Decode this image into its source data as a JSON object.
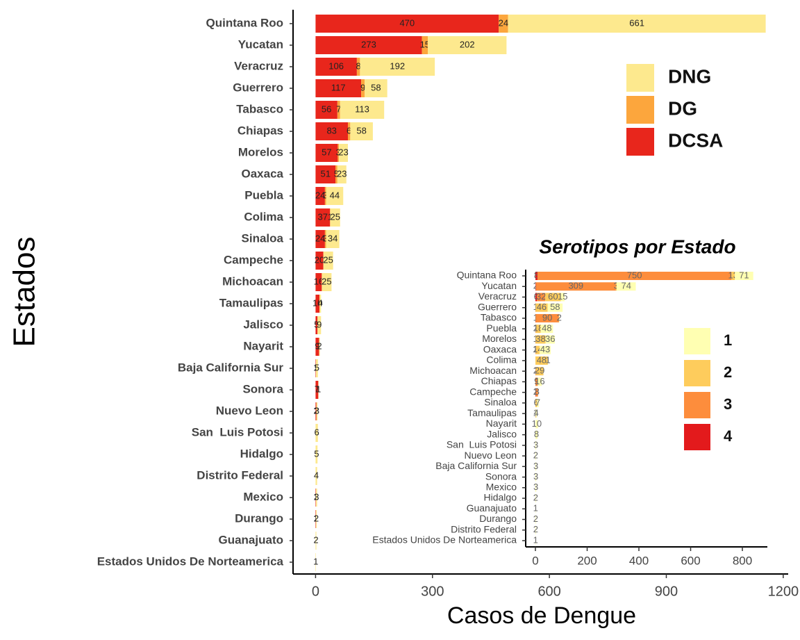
{
  "chart_data": [
    {
      "type": "bar",
      "orientation": "horizontal",
      "stacked": true,
      "x_label": "Casos de Dengue",
      "y_label": "Estados",
      "categories": [
        "Quintana Roo",
        "Yucatan",
        "Veracruz",
        "Guerrero",
        "Tabasco",
        "Chiapas",
        "Morelos",
        "Oaxaca",
        "Puebla",
        "Colima",
        "Sinaloa",
        "Campeche",
        "Michoacan",
        "Tamaulipas",
        "Jalisco",
        "Nayarit",
        "Baja California Sur",
        "Sonora",
        "Nuevo Leon",
        "San  Luis Potosi",
        "Hidalgo",
        "Distrito Federal",
        "Mexico",
        "Durango",
        "Guanajuato",
        "Estados Unidos De Norteamerica"
      ],
      "series": [
        {
          "name": "DCSA",
          "color": "#e8261c",
          "values": [
            470,
            273,
            106,
            117,
            56,
            83,
            57,
            51,
            24,
            37,
            24,
            20,
            16,
            10,
            5,
            9,
            1,
            7,
            2,
            null,
            null,
            null,
            1,
            1,
            null,
            null
          ]
        },
        {
          "name": "DG",
          "color": "#fca63d",
          "values": [
            24,
            15,
            8,
            9,
            7,
            6,
            3,
            5,
            3,
            1,
            3,
            null,
            null,
            null,
            null,
            null,
            null,
            null,
            null,
            null,
            null,
            null,
            null,
            null,
            null,
            null
          ]
        },
        {
          "name": "DNG",
          "color": "#fde98e",
          "values": [
            661,
            202,
            192,
            58,
            113,
            58,
            23,
            23,
            44,
            25,
            34,
            25,
            25,
            4,
            9,
            2,
            5,
            1,
            3,
            6,
            5,
            4,
            3,
            2,
            2,
            1
          ]
        }
      ],
      "xlim": [
        -57.75,
        1212.75
      ],
      "xticks": [
        0,
        300,
        600,
        900,
        1200
      ]
    },
    {
      "type": "bar",
      "orientation": "horizontal",
      "stacked": true,
      "title": "Serotipos por Estado",
      "categories": [
        "Quintana Roo",
        "Yucatan",
        "Veracruz",
        "Guerrero",
        "Tabasco",
        "Puebla",
        "Morelos",
        "Oaxaca",
        "Colima",
        "Michoacan",
        "Chiapas",
        "Campeche",
        "Sinaloa",
        "Tamaulipas",
        "Nayarit",
        "Jalisco",
        "San  Luis Potosi",
        "Nuevo Leon",
        "Baja California Sur",
        "Sonora",
        "Mexico",
        "Hidalgo",
        "Guanajuato",
        "Durango",
        "Distrito Federal",
        "Estados Unidos De Norteamerica"
      ],
      "series": [
        {
          "name": "1",
          "color": "#ffffb2",
          "values": [
            71,
            74,
            15,
            58,
            2,
            48,
            36,
            43,
            1,
            null,
            16,
            null,
            7,
            4,
            10,
            8,
            3,
            2,
            3,
            3,
            3,
            2,
            1,
            2,
            2,
            1
          ]
        },
        {
          "name": "2",
          "color": "#fecc5c",
          "values": [
            13,
            3,
            60,
            46,
            null,
            18,
            38,
            14,
            48,
            29,
            null,
            null,
            6,
            null,
            null,
            null,
            null,
            null,
            null,
            null,
            null,
            null,
            null,
            null,
            null,
            null
          ]
        },
        {
          "name": "3",
          "color": "#fd8d3c",
          "values": [
            750,
            309,
            32,
            1,
            90,
            2,
            1,
            2,
            null,
            2,
            9,
            8,
            null,
            1,
            null,
            null,
            null,
            null,
            null,
            null,
            null,
            null,
            null,
            null,
            null,
            null
          ]
        },
        {
          "name": "4",
          "color": "#e31a1c",
          "values": [
            8,
            2,
            6,
            null,
            1,
            null,
            null,
            null,
            null,
            null,
            null,
            2,
            null,
            null,
            null,
            null,
            null,
            null,
            null,
            null,
            null,
            null,
            null,
            null,
            null,
            null
          ]
        }
      ],
      "xlim": [
        -37.6,
        896.6
      ],
      "xticks": [
        0,
        200,
        400,
        600,
        800
      ]
    }
  ]
}
